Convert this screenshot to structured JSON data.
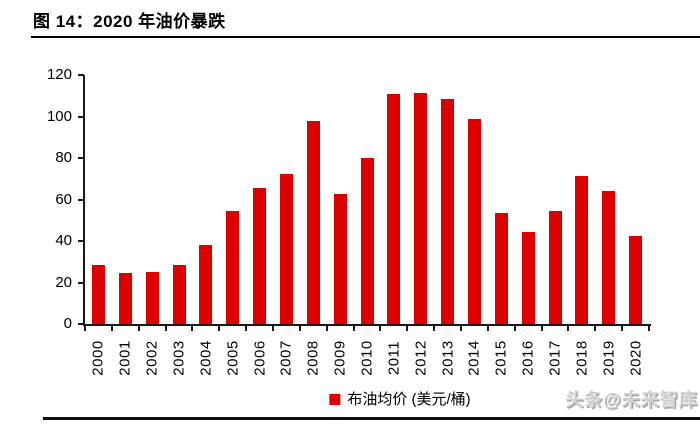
{
  "title": "图 14：2020 年油价暴跌",
  "watermark": "头条@未来智库",
  "chart_data": {
    "type": "bar",
    "title": "图 14：2020 年油价暴跌",
    "categories": [
      "2000",
      "2001",
      "2002",
      "2003",
      "2004",
      "2005",
      "2006",
      "2007",
      "2008",
      "2009",
      "2010",
      "2011",
      "2012",
      "2013",
      "2014",
      "2015",
      "2016",
      "2017",
      "2018",
      "2019",
      "2020"
    ],
    "values": [
      28.5,
      24.5,
      25,
      28.5,
      38,
      54.5,
      65.5,
      72.5,
      98,
      62.5,
      80,
      111,
      111.5,
      108.5,
      99,
      53.5,
      44.5,
      54.5,
      71.5,
      64,
      42.5
    ],
    "legend": "布油均价 (美元/桶)",
    "bar_color": "#dc0000",
    "axis_color": "#1a1a1a",
    "ylim": [
      0,
      120
    ],
    "yticks": [
      0,
      20,
      40,
      60,
      80,
      100,
      120
    ],
    "grid": false,
    "legend_position": "bottom-center"
  }
}
